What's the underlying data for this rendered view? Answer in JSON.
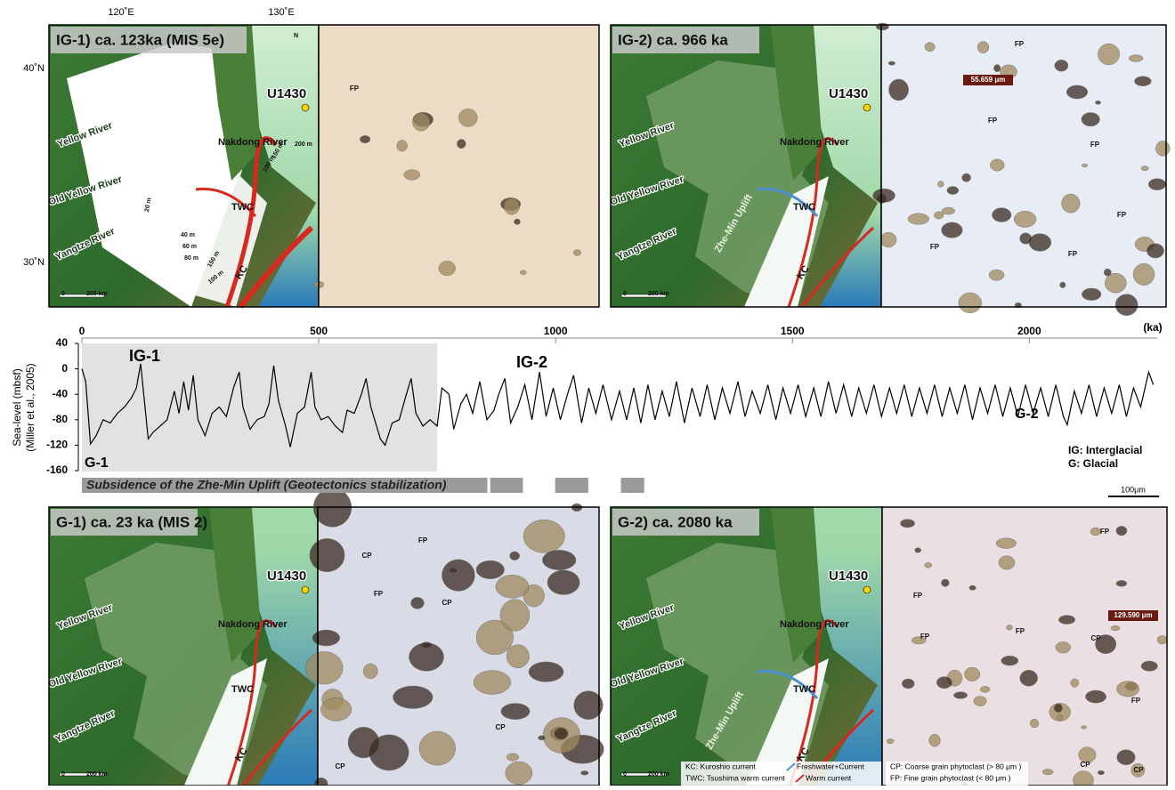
{
  "lat_lon": [
    "120˚E",
    "130˚E",
    "40˚N",
    "30˚N"
  ],
  "panels": [
    {
      "title": "IG-1) ca. 123ka (MIS 5e)",
      "map_labels": [
        "Yellow River",
        "Old Yellow River",
        "Yangtze River",
        "Nakdong River",
        "U1430",
        "TWC",
        "KC",
        "N",
        "200 m",
        "150 m",
        "100 m",
        "20 m",
        "40 m",
        "60 m",
        "80 m",
        "150 m",
        "100 m",
        "0",
        "200 km"
      ],
      "photo_labels": [
        "FP"
      ]
    },
    {
      "title": "IG-2) ca. 966 ka",
      "map_labels": [
        "Yellow River",
        "Old Yellow River",
        "Yangtze River",
        "Nakdong River",
        "U1430",
        "TWC",
        "KC",
        "Zhe-Min Uplift",
        "0",
        "200 km"
      ],
      "photo_labels": [
        "FP",
        "FP",
        "FP",
        "FP",
        "FP",
        "FP",
        "55.659 μm"
      ]
    },
    {
      "title": "G-1) ca. 23 ka (MIS 2)",
      "map_labels": [
        "Yellow River",
        "Old Yellow River",
        "Yangtze River",
        "Nakdong River",
        "U1430",
        "TWC",
        "KC",
        "0",
        "200 km"
      ],
      "photo_labels": [
        "CP",
        "FP",
        "FP",
        "CP",
        "CP",
        "CP"
      ]
    },
    {
      "title": "G-2) ca. 2080 ka",
      "map_labels": [
        "Yellow River",
        "Old Yellow River",
        "Yangtze River",
        "Nakdong River",
        "U1430",
        "TWC",
        "KC",
        "Zhe-Min Uplift",
        "0",
        "200 km"
      ],
      "photo_labels": [
        "FP",
        "FP",
        "FP",
        "FP",
        "CP",
        "FP",
        "CP",
        "CP",
        "129.590 μm"
      ]
    }
  ],
  "legend": [
    "KC: Kuroshio current",
    "TWC: Tsushima warm current",
    "Freshwater+Current",
    "Warm current",
    "CP: Coarse grain phytoclast (> 80 μm )",
    "FP: Fine grain phytoclast (< 80 μm )"
  ],
  "scale_bar": "100μm",
  "chart_data": {
    "type": "line",
    "y_label": "Sea-level (mbsf)",
    "y_label_source": "(Miller et al., 2005)",
    "x_label": "(ka)",
    "color": "#000000",
    "xlim": [
      0,
      2270
    ],
    "ylim": [
      -160,
      40
    ],
    "xticks": [
      0,
      500,
      1000,
      1500,
      2000
    ],
    "yticks": [
      -160,
      -120,
      -80,
      -40,
      0,
      40
    ],
    "highlight": [
      0,
      750
    ],
    "subsidence_label": "Subsidence of the Zhe-Min Uplift (Geotectonics stabilization)",
    "subsidence_periods": [
      [
        0,
        856
      ],
      [
        862,
        931
      ],
      [
        999,
        1069
      ],
      [
        1138,
        1187
      ]
    ],
    "annotations": [
      "IG-1",
      "IG-2",
      "G-1",
      "G-2",
      "IG: Interglacial",
      "G: Glacial"
    ],
    "x": [
      0,
      8,
      18,
      30,
      45,
      60,
      75,
      90,
      105,
      115,
      124,
      132,
      140,
      150,
      165,
      180,
      195,
      205,
      215,
      225,
      235,
      245,
      260,
      275,
      290,
      305,
      320,
      332,
      340,
      355,
      370,
      385,
      395,
      405,
      415,
      430,
      440,
      455,
      470,
      484,
      492,
      505,
      520,
      535,
      550,
      560,
      575,
      590,
      600,
      610,
      630,
      640,
      655,
      670,
      685,
      695,
      705,
      720,
      735,
      750,
      760,
      775,
      785,
      800,
      812,
      825,
      840,
      855,
      870,
      880,
      893,
      905,
      920,
      935,
      950,
      966,
      980,
      995,
      1010,
      1025,
      1038,
      1055,
      1070,
      1085,
      1100,
      1118,
      1135,
      1150,
      1165,
      1180,
      1195,
      1210,
      1225,
      1240,
      1255,
      1272,
      1288,
      1305,
      1320,
      1336,
      1352,
      1368,
      1385,
      1400,
      1415,
      1432,
      1448,
      1465,
      1480,
      1496,
      1512,
      1528,
      1545,
      1560,
      1576,
      1592,
      1608,
      1625,
      1640,
      1656,
      1672,
      1688,
      1705,
      1720,
      1736,
      1752,
      1768,
      1784,
      1800,
      1816,
      1832,
      1848,
      1864,
      1880,
      1896,
      1912,
      1928,
      1944,
      1960,
      1976,
      1992,
      2008,
      2024,
      2040,
      2056,
      2072,
      2080,
      2095,
      2110,
      2126,
      2142,
      2158,
      2174,
      2190,
      2205,
      2220,
      2235,
      2252,
      2262
    ],
    "values": [
      0,
      -20,
      -118,
      -105,
      -80,
      -85,
      -70,
      -60,
      -45,
      -30,
      8,
      -50,
      -110,
      -100,
      -90,
      -80,
      -35,
      -70,
      -20,
      -65,
      -10,
      -80,
      -105,
      -70,
      -60,
      -75,
      -30,
      -5,
      -60,
      -95,
      -80,
      -75,
      -55,
      5,
      -50,
      -90,
      -123,
      -70,
      -60,
      -5,
      -60,
      -80,
      -75,
      -90,
      -100,
      -65,
      -70,
      -40,
      -15,
      -60,
      -110,
      -120,
      -85,
      -80,
      -40,
      -15,
      -70,
      -90,
      -80,
      -90,
      -30,
      -40,
      -95,
      -55,
      -40,
      -70,
      -20,
      -80,
      -65,
      -40,
      -15,
      -85,
      -60,
      -25,
      -80,
      -5,
      -75,
      -30,
      -80,
      -40,
      -10,
      -85,
      -30,
      -70,
      -25,
      -80,
      -35,
      -80,
      -30,
      -85,
      -25,
      -80,
      -35,
      -75,
      -20,
      -85,
      -30,
      -75,
      -25,
      -80,
      -30,
      -70,
      -20,
      -75,
      -35,
      -70,
      -25,
      -80,
      -30,
      -70,
      -25,
      -75,
      -30,
      -75,
      -20,
      -70,
      -25,
      -75,
      -30,
      -70,
      -25,
      -75,
      -30,
      -70,
      -25,
      -75,
      -30,
      -70,
      -25,
      -75,
      -30,
      -70,
      -25,
      -80,
      -30,
      -70,
      -25,
      -75,
      -30,
      -75,
      -25,
      -70,
      -30,
      -75,
      -25,
      -75,
      -88,
      -35,
      -70,
      -25,
      -75,
      -30,
      -70,
      -25,
      -75,
      -30,
      -60,
      -5,
      -25
    ]
  }
}
